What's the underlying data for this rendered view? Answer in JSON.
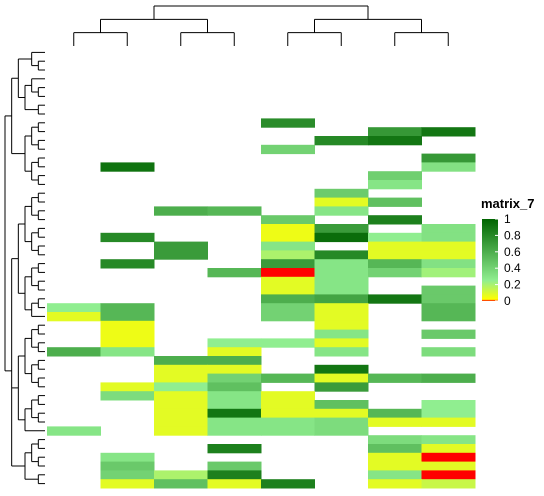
{
  "chart_data": {
    "type": "heatmap",
    "n_rows": 50,
    "n_cols": 8,
    "legend": {
      "title": "matrix_7",
      "ticks": [
        "1",
        "0.8",
        "0.6",
        "0.4",
        "0.2",
        "0"
      ],
      "tick_values": [
        1,
        0.8,
        0.6,
        0.4,
        0.2,
        0
      ],
      "colors": {
        "min": "#ff0000",
        "low": "#ffff00",
        "mid": "#90ee90",
        "high": "#006400"
      }
    },
    "cells": [
      [
        8,
        4,
        0.78
      ],
      [
        9,
        6,
        0.72
      ],
      [
        9,
        7,
        0.9
      ],
      [
        10,
        5,
        0.8
      ],
      [
        10,
        6,
        0.9
      ],
      [
        11,
        4,
        0.4
      ],
      [
        12,
        7,
        0.72
      ],
      [
        13,
        1,
        0.92
      ],
      [
        13,
        7,
        0.32
      ],
      [
        14,
        6,
        0.42
      ],
      [
        15,
        6,
        0.3
      ],
      [
        16,
        5,
        0.44
      ],
      [
        17,
        5,
        0.1
      ],
      [
        17,
        6,
        0.5
      ],
      [
        18,
        2,
        0.6
      ],
      [
        18,
        3,
        0.55
      ],
      [
        18,
        5,
        0.3
      ],
      [
        19,
        4,
        0.45
      ],
      [
        19,
        6,
        0.85
      ],
      [
        20,
        4,
        0.08
      ],
      [
        20,
        5,
        0.7
      ],
      [
        20,
        7,
        0.32
      ],
      [
        21,
        1,
        0.8
      ],
      [
        21,
        4,
        0.08
      ],
      [
        21,
        5,
        0.95
      ],
      [
        21,
        6,
        0.25
      ],
      [
        21,
        7,
        0.32
      ],
      [
        22,
        2,
        0.7
      ],
      [
        22,
        4,
        0.3
      ],
      [
        22,
        6,
        0.1
      ],
      [
        22,
        7,
        0.1
      ],
      [
        23,
        2,
        0.7
      ],
      [
        23,
        4,
        0.2
      ],
      [
        23,
        5,
        0.8
      ],
      [
        23,
        6,
        0.1
      ],
      [
        23,
        7,
        0.1
      ],
      [
        24,
        1,
        0.8
      ],
      [
        24,
        4,
        0.7
      ],
      [
        24,
        5,
        0.3
      ],
      [
        24,
        6,
        0.55
      ],
      [
        24,
        7,
        0.32
      ],
      [
        25,
        3,
        0.55
      ],
      [
        25,
        4,
        0.0
      ],
      [
        25,
        5,
        0.3
      ],
      [
        25,
        6,
        0.4
      ],
      [
        25,
        7,
        0.22
      ],
      [
        26,
        4,
        0.1
      ],
      [
        26,
        5,
        0.3
      ],
      [
        27,
        4,
        0.1
      ],
      [
        27,
        5,
        0.3
      ],
      [
        27,
        7,
        0.45
      ],
      [
        28,
        4,
        0.6
      ],
      [
        28,
        5,
        0.65
      ],
      [
        28,
        6,
        0.9
      ],
      [
        28,
        7,
        0.45
      ],
      [
        29,
        0,
        0.25
      ],
      [
        29,
        1,
        0.55
      ],
      [
        29,
        4,
        0.4
      ],
      [
        29,
        5,
        0.1
      ],
      [
        29,
        7,
        0.55
      ],
      [
        30,
        0,
        0.1
      ],
      [
        30,
        1,
        0.55
      ],
      [
        30,
        4,
        0.4
      ],
      [
        30,
        5,
        0.1
      ],
      [
        30,
        7,
        0.55
      ],
      [
        31,
        1,
        0.08
      ],
      [
        31,
        5,
        0.1
      ],
      [
        32,
        1,
        0.08
      ],
      [
        32,
        5,
        0.3
      ],
      [
        32,
        7,
        0.45
      ],
      [
        33,
        1,
        0.08
      ],
      [
        33,
        3,
        0.25
      ],
      [
        33,
        4,
        0.25
      ],
      [
        33,
        5,
        0.1
      ],
      [
        34,
        0,
        0.6
      ],
      [
        34,
        1,
        0.3
      ],
      [
        34,
        3,
        0.1
      ],
      [
        34,
        5,
        0.3
      ],
      [
        34,
        7,
        0.35
      ],
      [
        35,
        2,
        0.6
      ],
      [
        35,
        3,
        0.6
      ],
      [
        36,
        2,
        0.1
      ],
      [
        36,
        3,
        0.1
      ],
      [
        36,
        5,
        0.9
      ],
      [
        37,
        2,
        0.1
      ],
      [
        37,
        3,
        0.4
      ],
      [
        37,
        4,
        0.55
      ],
      [
        37,
        5,
        0.1
      ],
      [
        37,
        6,
        0.55
      ],
      [
        37,
        7,
        0.6
      ],
      [
        38,
        1,
        0.1
      ],
      [
        38,
        2,
        0.25
      ],
      [
        38,
        3,
        0.5
      ],
      [
        38,
        5,
        0.7
      ],
      [
        39,
        1,
        0.35
      ],
      [
        39,
        2,
        0.1
      ],
      [
        39,
        3,
        0.3
      ],
      [
        39,
        4,
        0.1
      ],
      [
        40,
        2,
        0.1
      ],
      [
        40,
        3,
        0.3
      ],
      [
        40,
        4,
        0.1
      ],
      [
        40,
        5,
        0.5
      ],
      [
        40,
        7,
        0.25
      ],
      [
        41,
        2,
        0.1
      ],
      [
        41,
        3,
        0.9
      ],
      [
        41,
        4,
        0.1
      ],
      [
        41,
        5,
        0.1
      ],
      [
        41,
        6,
        0.55
      ],
      [
        41,
        7,
        0.25
      ],
      [
        42,
        2,
        0.1
      ],
      [
        42,
        3,
        0.3
      ],
      [
        42,
        4,
        0.3
      ],
      [
        42,
        5,
        0.35
      ],
      [
        42,
        6,
        0.1
      ],
      [
        42,
        7,
        0.1
      ],
      [
        43,
        0,
        0.3
      ],
      [
        43,
        2,
        0.1
      ],
      [
        43,
        3,
        0.3
      ],
      [
        43,
        4,
        0.3
      ],
      [
        43,
        5,
        0.35
      ],
      [
        44,
        6,
        0.35
      ],
      [
        44,
        7,
        0.3
      ],
      [
        45,
        3,
        0.85
      ],
      [
        45,
        6,
        0.5
      ],
      [
        45,
        7,
        0.1
      ],
      [
        46,
        1,
        0.3
      ],
      [
        46,
        6,
        0.1
      ],
      [
        46,
        7,
        0.0
      ],
      [
        47,
        1,
        0.45
      ],
      [
        47,
        3,
        0.45
      ],
      [
        47,
        6,
        0.1
      ],
      [
        47,
        7,
        0.1
      ],
      [
        48,
        1,
        0.4
      ],
      [
        48,
        2,
        0.2
      ],
      [
        48,
        3,
        0.85
      ],
      [
        48,
        6,
        0.3
      ],
      [
        48,
        7,
        0.0
      ],
      [
        49,
        1,
        0.1
      ],
      [
        49,
        2,
        0.5
      ],
      [
        49,
        3,
        0.1
      ],
      [
        49,
        4,
        0.85
      ],
      [
        49,
        6,
        0.1
      ],
      [
        49,
        7,
        0.15
      ]
    ],
    "row_tree": [
      [
        [
          [
            0,
            [
              1,
              2
            ]
          ],
          [
            [
              3,
              [
                4,
                5
              ]
            ],
            [
              6,
              7
            ]
          ]
        ],
        [
          [
            [
              8,
              9
            ],
            [
              10,
              11
            ]
          ],
          [
            [
              12,
              13
            ],
            [
              14,
              15
            ]
          ]
        ]
      ],
      [
        [
          [
            [
              [
                16,
                17
              ],
              [
                18,
                19
              ]
            ],
            [
              [
                20,
                21
              ],
              [
                22,
                23
              ]
            ]
          ],
          [
            [
              [
                24,
                25
              ],
              [
                26,
                27
              ]
            ],
            [
              [
                28,
                29
              ],
              30
            ]
          ]
        ],
        [
          [
            [
              [
                31,
                32
              ],
              [
                33,
                34
              ]
            ],
            [
              [
                35,
                36
              ],
              [
                37,
                38
              ]
            ]
          ],
          [
            [
              [
                39,
                40
              ],
              [
                41,
                42
              ]
            ],
            43
          ]
        ],
        [
          [
            [
              44,
              45
            ],
            [
              46,
              47
            ]
          ],
          [
            48,
            49
          ]
        ]
      ]
    ],
    "col_tree": [
      [
        [
          0,
          1
        ],
        [
          2,
          3
        ]
      ],
      [
        [
          4,
          5
        ],
        [
          6,
          7
        ]
      ]
    ]
  }
}
